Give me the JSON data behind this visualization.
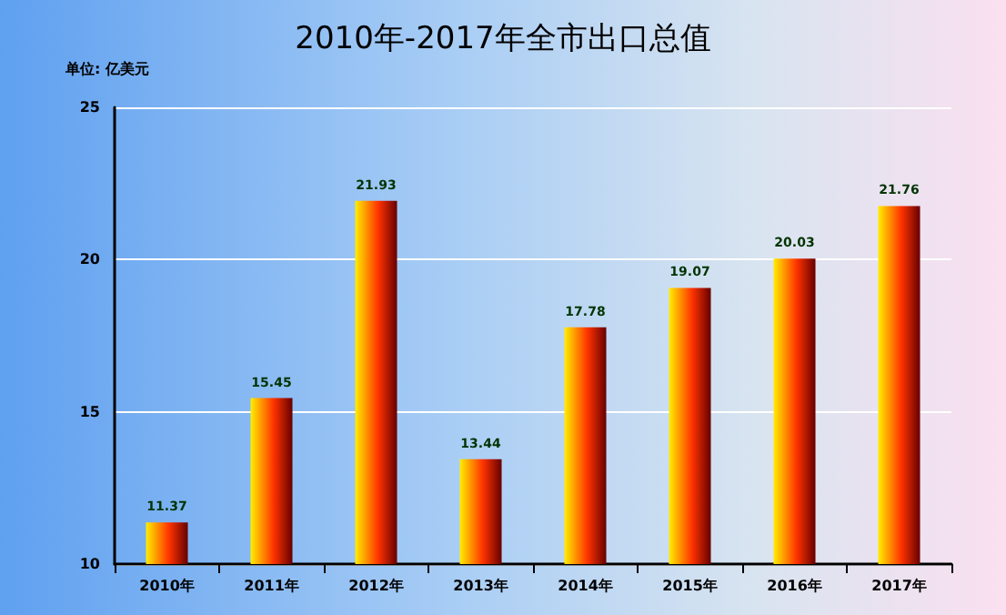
{
  "chart_data": {
    "type": "bar",
    "title": "2010年-2017年全市出口总值",
    "annotations": [
      "单位: 亿美元"
    ],
    "categories": [
      "2010年",
      "2011年",
      "2012年",
      "2013年",
      "2014年",
      "2015年",
      "2016年",
      "2017年"
    ],
    "values": [
      11.37,
      15.45,
      21.93,
      13.44,
      17.78,
      19.07,
      20.03,
      21.76
    ],
    "color": "#ff3300",
    "ylim": [
      10,
      25
    ],
    "yticks": [
      10,
      15,
      20,
      25
    ],
    "grid": "y",
    "data_labels": true
  }
}
